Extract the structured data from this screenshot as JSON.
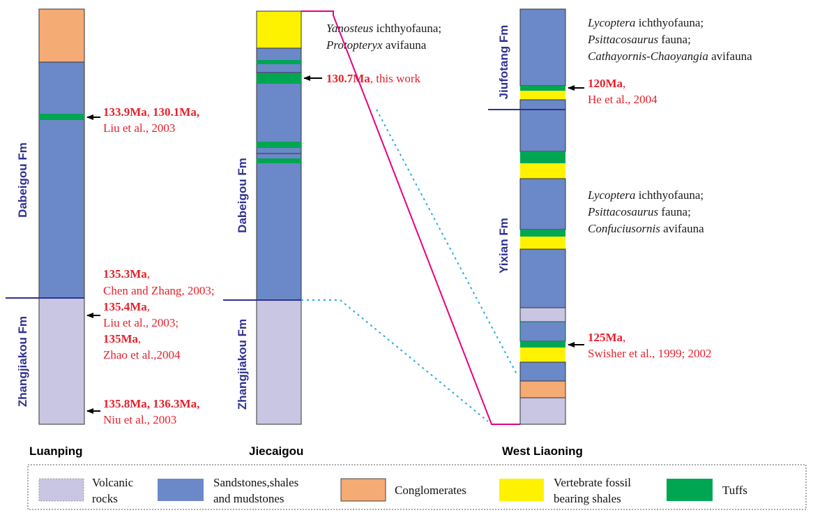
{
  "colors": {
    "volcanic": "#c8c6e2",
    "sandstone": "#6b89c8",
    "conglomerate": "#f5ab74",
    "vertebrate": "#fff200",
    "tuff": "#00a651",
    "formation_label": "#2e3192",
    "annotation": "#e8202a",
    "correlation_line": "#e6007e",
    "dotted_line": "#29abe2"
  },
  "sites": {
    "luanping": {
      "name": "Luanping",
      "formations": {
        "upper": "Dabeigou Fm",
        "lower": "Zhangjiakou Fm"
      }
    },
    "jiecaigou": {
      "name": "Jiecaigou",
      "formations": {
        "upper": "Dabeigou Fm",
        "lower": "Zhangjiakou Fm"
      }
    },
    "west_liaoning": {
      "name": "West Liaoning",
      "formations": {
        "upper": "Jiufotang Fm",
        "lower": "Yixian Fm"
      }
    }
  },
  "annotations": {
    "lp_a1_date": "133.9Ma",
    "lp_a1_date2": "130.1Ma,",
    "lp_a1_ref": "Liu  et al., 2003",
    "lp_a2_date": "135.3Ma",
    "lp_a2_ref": "Chen and Zhang, 2003;",
    "lp_a3_date": "135.4Ma",
    "lp_a3_ref": "Liu  et al., 2003;",
    "lp_a4_date": "135Ma",
    "lp_a4_ref": "Zhao et al.,2004",
    "lp_a5_date": "135.8Ma, 136.3Ma,",
    "lp_a5_ref": "Niu et al., 2003",
    "jc_fauna_1_taxon": "Yanosteus",
    "jc_fauna_1_rest": " ichthyofauna;",
    "jc_fauna_2_taxon": "Protopteryx",
    "jc_fauna_2_rest": " avifauna",
    "jc_date": "130.7Ma",
    "jc_ref": ", this work",
    "wl_top_1_taxon": "Lycoptera",
    "wl_top_1_rest": " ichthyofauna;",
    "wl_top_2_taxon": "Psittacosaurus",
    "wl_top_2_rest": " fauna;",
    "wl_top_3_taxon": "Cathayornis-Chaoyangia",
    "wl_top_3_rest": " avifauna",
    "wl_a1_date": "120Ma",
    "wl_a1_ref": "He et al., 2004",
    "wl_mid_1_taxon": "Lycoptera",
    "wl_mid_1_rest": " ichthyofauna;",
    "wl_mid_2_taxon": "Psittacosaurus",
    "wl_mid_2_rest": " fauna;",
    "wl_mid_3_taxon": "Confuciusornis",
    "wl_mid_3_rest": " avifauna",
    "wl_a2_date": "125Ma",
    "wl_a2_ref": "Swisher  et al., 1999; 2002",
    "comma": ","
  },
  "legend": {
    "volcanic_l1": "Volcanic",
    "volcanic_l2": "rocks",
    "sandstone_l1": "Sandstones,shales",
    "sandstone_l2": "and mudstones",
    "conglomerate": "Conglomerates",
    "vertebrate_l1": "Vertebrate fossil",
    "vertebrate_l2": "bearing shales",
    "tuff": "Tuffs"
  }
}
